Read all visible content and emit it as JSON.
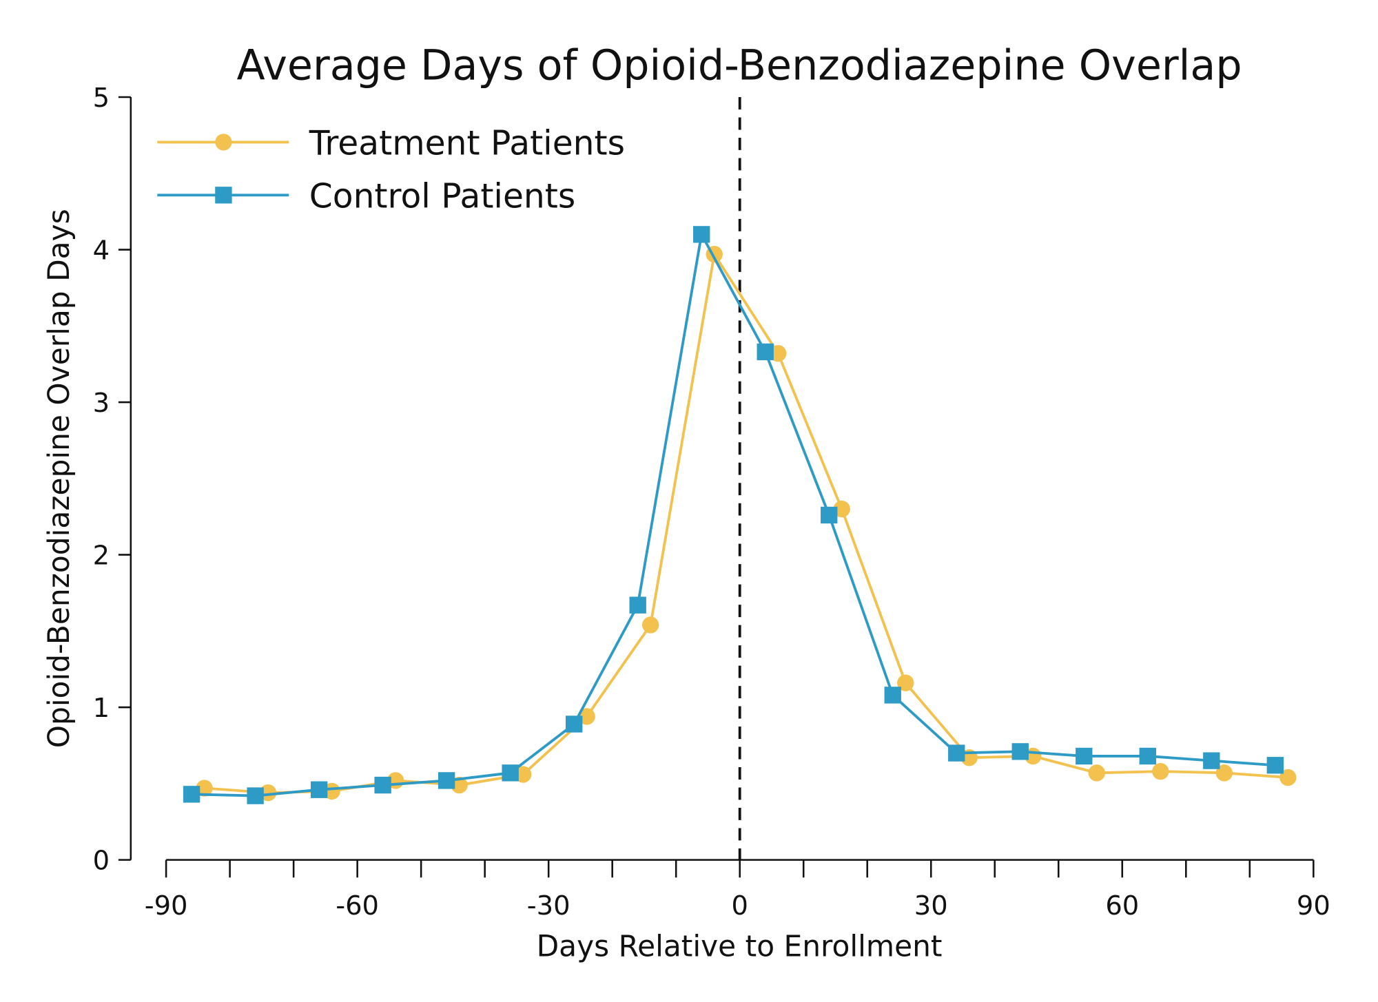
{
  "chart_data": {
    "type": "line",
    "title": "Average Days of Opioid-Benzodiazepine Overlap",
    "xlabel": "Days Relative to Enrollment",
    "ylabel": "Opioid-Benzodiazepine Overlap Days",
    "xlim": [
      -90,
      90
    ],
    "ylim": [
      0,
      5
    ],
    "xticks": [
      -90,
      -60,
      -30,
      0,
      30,
      60,
      90
    ],
    "xminor_step": 10,
    "yticks": [
      0,
      1,
      2,
      3,
      4,
      5
    ],
    "grid": false,
    "legend_position": "top-left",
    "reference_line": {
      "x": 0,
      "style": "dashed",
      "color": "#111111"
    },
    "series": [
      {
        "name": "Treatment Patients",
        "color": "#f2c14e",
        "marker": "circle",
        "x": [
          -84,
          -74,
          -64,
          -54,
          -44,
          -34,
          -24,
          -14,
          -4,
          6,
          16,
          26,
          36,
          46,
          56,
          66,
          76,
          86
        ],
        "y": [
          0.47,
          0.44,
          0.45,
          0.52,
          0.49,
          0.56,
          0.94,
          1.54,
          3.97,
          3.32,
          2.3,
          1.16,
          0.67,
          0.68,
          0.57,
          0.58,
          0.57,
          0.54
        ]
      },
      {
        "name": "Control Patients",
        "color": "#2e9ac6",
        "marker": "square",
        "x": [
          -86,
          -76,
          -66,
          -56,
          -46,
          -36,
          -26,
          -16,
          -6,
          4,
          14,
          24,
          34,
          44,
          54,
          64,
          74,
          84
        ],
        "y": [
          0.43,
          0.42,
          0.46,
          0.49,
          0.52,
          0.57,
          0.89,
          1.67,
          4.1,
          3.33,
          2.26,
          1.08,
          0.7,
          0.71,
          0.68,
          0.68,
          0.65,
          0.62
        ]
      }
    ]
  }
}
